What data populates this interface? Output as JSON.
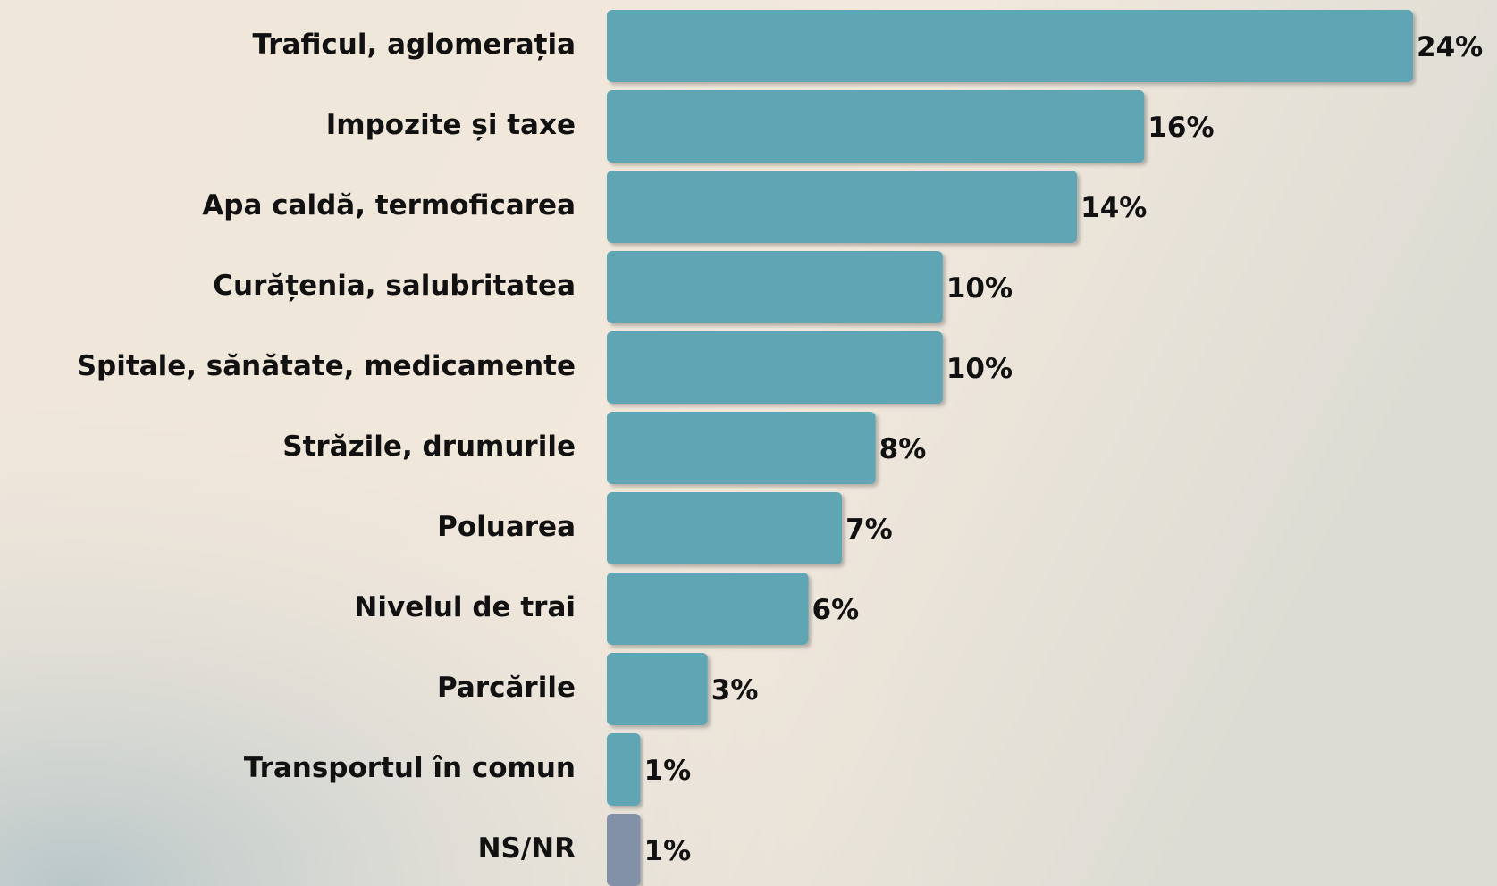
{
  "chart_data": {
    "type": "hbar",
    "categories": [
      "Traficul, aglomerația",
      "Impozite și taxe",
      "Apa caldă, termoficarea",
      "Curățenia, salubritatea",
      "Spitale, sănătate, medicamente",
      "Străzile, drumurile",
      "Poluarea",
      "Nivelul de trai",
      "Parcările",
      "Transportul în comun",
      "NS/NR"
    ],
    "values": [
      24,
      16,
      14,
      10,
      10,
      8,
      7,
      6,
      3,
      1,
      1
    ],
    "value_labels": [
      "24%",
      "16%",
      "14%",
      "10%",
      "10%",
      "8%",
      "7%",
      "6%",
      "3%",
      "1%",
      "1%"
    ],
    "colors": [
      "#5fa5b3",
      "#5fa5b3",
      "#5fa5b3",
      "#5fa5b3",
      "#5fa5b3",
      "#5fa5b3",
      "#5fa5b3",
      "#5fa5b3",
      "#5fa5b3",
      "#5fa5b3",
      "#8290a8"
    ]
  }
}
